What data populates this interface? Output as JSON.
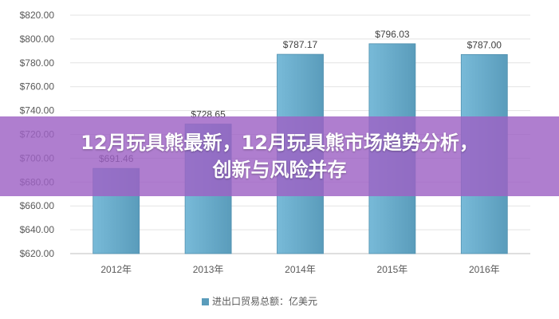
{
  "chart_data": {
    "type": "bar",
    "categories": [
      "2012年",
      "2013年",
      "2014年",
      "2015年",
      "2016年"
    ],
    "series": [
      {
        "name": "进出口贸易总额：亿美元",
        "values": [
          691.46,
          728.65,
          787.17,
          796.03,
          787.0
        ]
      }
    ],
    "data_labels": [
      "$691.46",
      "$728.65",
      "$787.17",
      "$796.03",
      "$787.00"
    ],
    "yticks": [
      "$620.00",
      "$640.00",
      "$660.00",
      "$680.00",
      "$700.00",
      "$720.00",
      "$740.00",
      "$760.00",
      "$780.00",
      "$800.00",
      "$820.00"
    ],
    "ylim": [
      620,
      820
    ],
    "grid": true,
    "legend_position": "bottom",
    "bar_color": "#6aaecd"
  },
  "banner": {
    "line1": "12月玩具熊最新，12月玩具熊市场趋势分析，",
    "line2": "创新与风险并存"
  }
}
